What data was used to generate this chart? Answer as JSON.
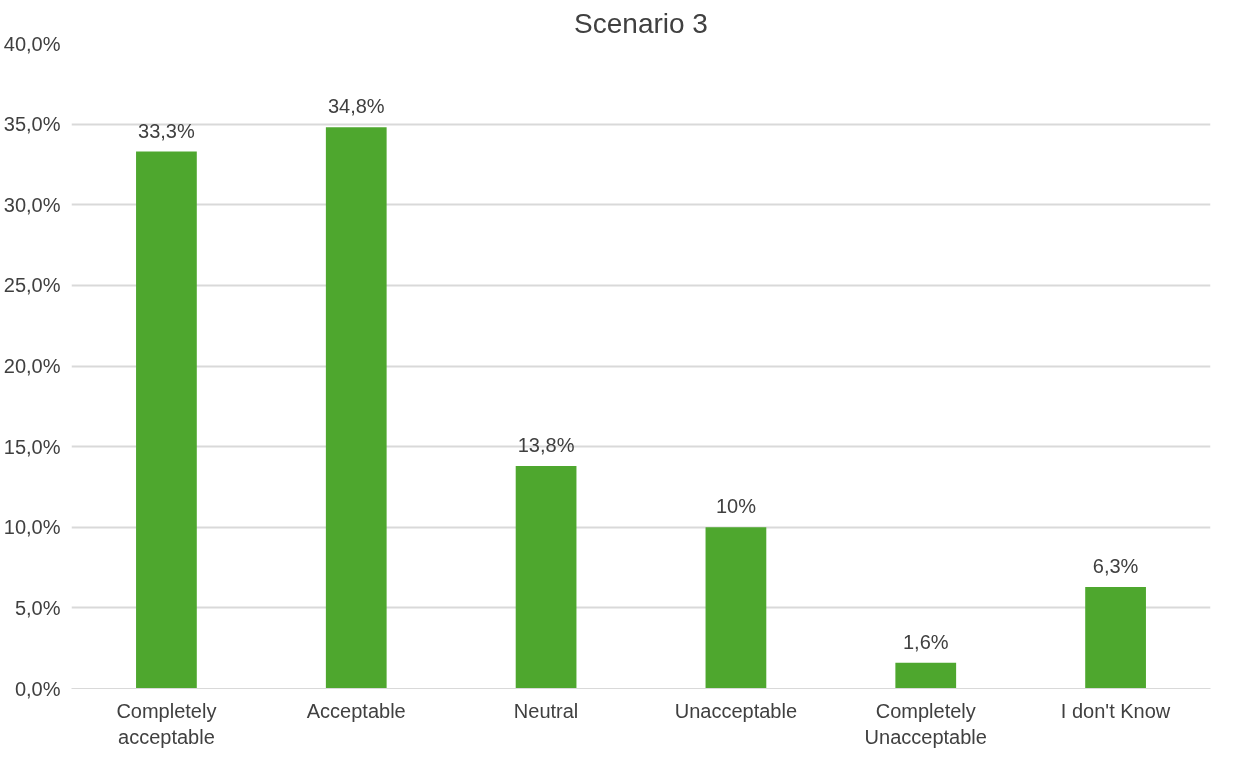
{
  "chart_data": {
    "type": "bar",
    "title": "Scenario 3",
    "categories": [
      "Completely acceptable",
      "Acceptable",
      "Neutral",
      "Unacceptable",
      "Completely Unacceptable",
      "I don't Know"
    ],
    "values": [
      33.3,
      34.8,
      13.8,
      10,
      1.6,
      6.3
    ],
    "value_labels": [
      "33,3%",
      "34,8%",
      "13,8%",
      "10%",
      "1,6%",
      "6,3%"
    ],
    "color": "#4ea72e",
    "ylim": [
      0,
      40
    ],
    "yticks": [
      {
        "value": 0,
        "label": "0,0%"
      },
      {
        "value": 5,
        "label": "5,0%"
      },
      {
        "value": 10,
        "label": "10,0%"
      },
      {
        "value": 15,
        "label": "15,0%"
      },
      {
        "value": 20,
        "label": "20,0%"
      },
      {
        "value": 25,
        "label": "25,0%"
      },
      {
        "value": 30,
        "label": "30,0%"
      },
      {
        "value": 35,
        "label": "35,0%"
      },
      {
        "value": 40,
        "label": "40,0%"
      }
    ],
    "grid": "y"
  }
}
